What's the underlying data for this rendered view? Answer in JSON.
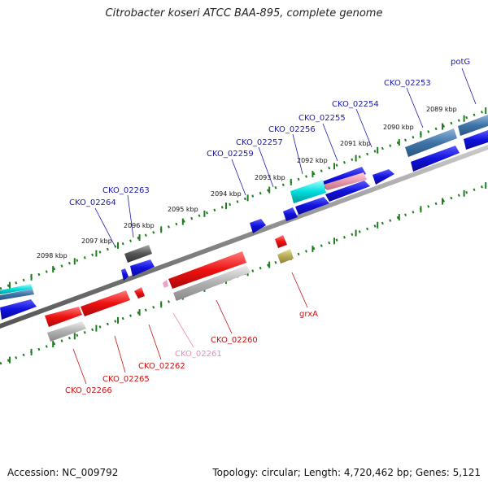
{
  "title": "Citrobacter koseri ATCC BAA-895, complete genome",
  "footer": {
    "accession": "Accession: NC_009792",
    "topology": "Topology: circular; Length: 4,720,462 bp; Genes: 5,121"
  },
  "colors": {
    "forward_label": "#1a1aaa",
    "reverse_label": "#cc1111",
    "rna_label": "#ee88bb",
    "backbone": "#888888",
    "ticks": "#1e7d1e",
    "forward_gene": "#1010dd",
    "reverse_gene": "#ee1111",
    "homolog_gray": "#aaaaaa"
  },
  "kbp_ticks": [
    {
      "label": "2089 kbp"
    },
    {
      "label": "2090 kbp"
    },
    {
      "label": "2091 kbp"
    },
    {
      "label": "2092 kbp"
    },
    {
      "label": "2093 kbp"
    },
    {
      "label": "2094 kbp"
    },
    {
      "label": "2095 kbp"
    },
    {
      "label": "2096 kbp"
    },
    {
      "label": "2097 kbp"
    },
    {
      "label": "2098 kbp"
    }
  ],
  "forward_genes": [
    {
      "name": "potG"
    },
    {
      "name": "CKO_02253"
    },
    {
      "name": "CKO_02254"
    },
    {
      "name": "CKO_02255"
    },
    {
      "name": "CKO_02256"
    },
    {
      "name": "CKO_02257"
    },
    {
      "name": "CKO_02259"
    },
    {
      "name": "CKO_02263"
    },
    {
      "name": "CKO_02264"
    }
  ],
  "reverse_genes": [
    {
      "name": "grxA"
    },
    {
      "name": "CKO_02260"
    },
    {
      "name": "CKO_02261"
    },
    {
      "name": "CKO_02262"
    },
    {
      "name": "CKO_02265"
    },
    {
      "name": "CKO_02266"
    }
  ]
}
